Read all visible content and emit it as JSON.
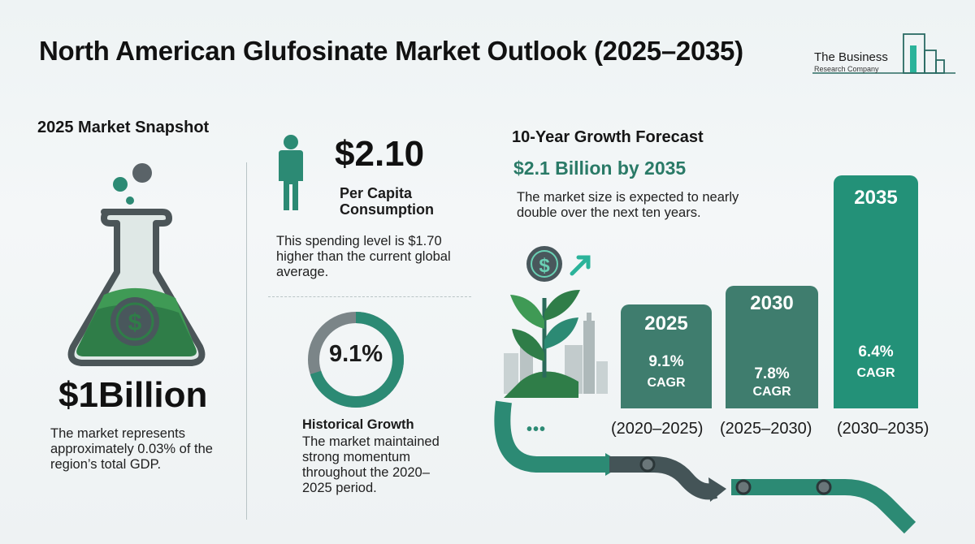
{
  "title": "North American Glufosinate Market Outlook (2025–2035)",
  "logo": {
    "line1": "The Business",
    "line2": "Research Company"
  },
  "snapshot": {
    "heading": "2025 Market Snapshot",
    "value": "$1Billion",
    "text": [
      "The market represents",
      "approximately 0.03% of the",
      "region’s total GDP."
    ]
  },
  "per_capita": {
    "value": "$2.10",
    "label": [
      "Per Capita",
      "Consumption"
    ],
    "text": [
      "This spending level is $1.70",
      "higher than the current global",
      "average."
    ]
  },
  "historical": {
    "value": "9.1%",
    "fraction": 0.7,
    "label": "Historical Growth",
    "text": [
      "The market maintained",
      "strong momentum",
      "throughout the 2020–",
      "2025 period."
    ]
  },
  "forecast": {
    "heading": "10-Year Growth Forecast",
    "subheading": "$2.1 Billion by 2035",
    "text": [
      "The market size is expected to nearly",
      "double over the next ten years."
    ],
    "dots": "•••",
    "bars": [
      {
        "year": "2025",
        "cagr": "9.1%",
        "cagr_label": "CAGR",
        "period": "(2020–2025)",
        "color": "#3f7d6e"
      },
      {
        "year": "2030",
        "cagr": "7.8%",
        "cagr_label": "CAGR",
        "period": "(2025–2030)",
        "color": "#3f7d6e"
      },
      {
        "year": "2035",
        "cagr": "6.4%",
        "cagr_label": "CAGR",
        "period": "(2030–2035)",
        "color": "#239178"
      }
    ]
  },
  "colors": {
    "green_dark": "#2f6b5d",
    "green_accent": "#239178",
    "gray": "#4c5a5c"
  }
}
